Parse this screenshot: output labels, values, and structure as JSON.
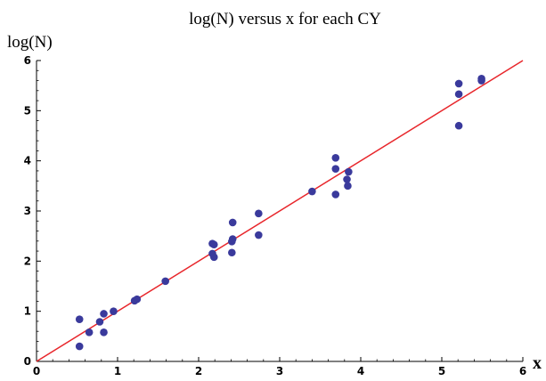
{
  "chart_data": {
    "type": "scatter",
    "title": "log(N) versus x for each CY",
    "xlabel": "x",
    "ylabel": "log(N)",
    "xlim": [
      0,
      6
    ],
    "ylim": [
      0,
      6
    ],
    "xticks": [
      "0",
      "1",
      "2",
      "3",
      "4",
      "5",
      "6"
    ],
    "yticks": [
      "0",
      "1",
      "2",
      "3",
      "4",
      "5",
      "6"
    ],
    "grid": false,
    "legend": "none",
    "series": [
      {
        "points": [
          [
            0.53,
            0.3
          ],
          [
            0.53,
            0.84
          ],
          [
            0.65,
            0.58
          ],
          [
            0.78,
            0.79
          ],
          [
            0.83,
            0.95
          ],
          [
            0.83,
            0.58
          ],
          [
            0.95,
            1.0
          ],
          [
            1.21,
            1.21
          ],
          [
            1.24,
            1.24
          ],
          [
            1.59,
            1.6
          ],
          [
            2.17,
            2.35
          ],
          [
            2.19,
            2.33
          ],
          [
            2.17,
            2.15
          ],
          [
            2.19,
            2.08
          ],
          [
            2.41,
            2.39
          ],
          [
            2.42,
            2.44
          ],
          [
            2.42,
            2.77
          ],
          [
            2.41,
            2.17
          ],
          [
            2.74,
            2.95
          ],
          [
            2.74,
            2.52
          ],
          [
            3.4,
            3.39
          ],
          [
            3.69,
            4.06
          ],
          [
            3.69,
            3.84
          ],
          [
            3.69,
            3.33
          ],
          [
            3.83,
            3.63
          ],
          [
            3.84,
            3.5
          ],
          [
            3.85,
            3.78
          ],
          [
            5.21,
            5.54
          ],
          [
            5.21,
            5.33
          ],
          [
            5.21,
            4.7
          ],
          [
            5.49,
            5.64
          ],
          [
            5.49,
            5.6
          ]
        ]
      }
    ],
    "fit_line": {
      "x": [
        0,
        6
      ],
      "y": [
        0,
        6
      ]
    },
    "colors": {
      "points": "#3a3a9c",
      "line": "#e8262b",
      "axes": "#000000"
    }
  }
}
